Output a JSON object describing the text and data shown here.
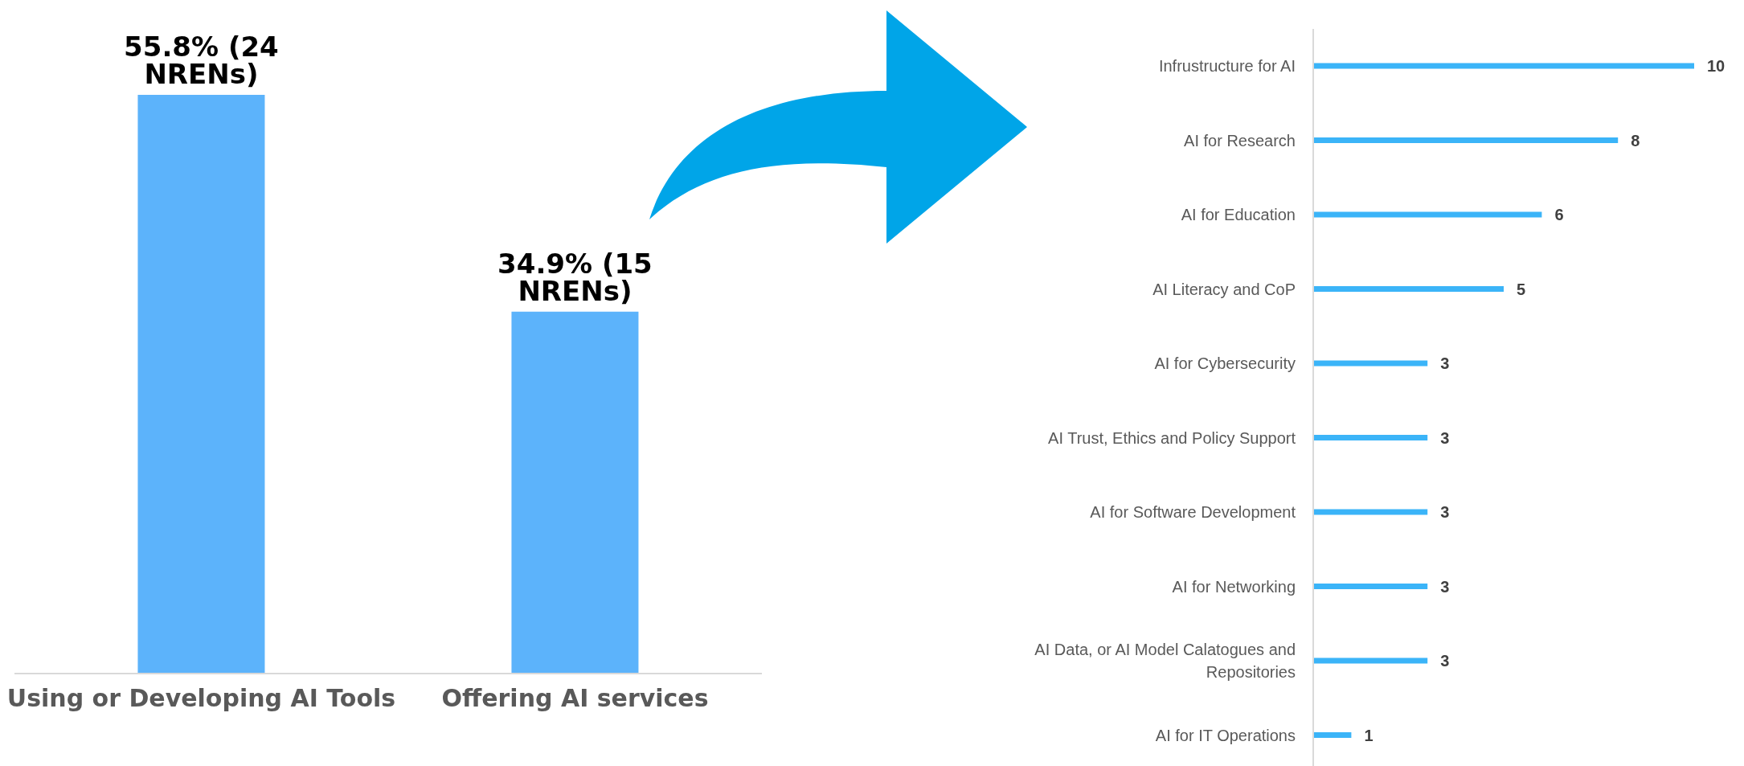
{
  "chart_data": [
    {
      "type": "bar",
      "categories": [
        "Using or Developing AI Tools",
        "Offering AI services"
      ],
      "values": [
        55.8,
        34.9
      ],
      "value_labels": [
        "55.8% (24 NRENs)",
        "34.9% (15 NRENs)"
      ],
      "color": "#5cb3fb",
      "grid": false,
      "legend": false
    },
    {
      "type": "bar",
      "orientation": "horizontal",
      "categories": [
        "Infrustructure for AI",
        "AI for Research",
        "AI for Education",
        "AI Literacy and CoP",
        "AI for Cybersecurity",
        "AI Trust, Ethics and Policy Support",
        "AI for Software Development",
        "AI for Networking",
        "AI Data, or AI Model Calatogues and Repositories",
        "AI for IT Operations"
      ],
      "values": [
        10,
        8,
        6,
        5,
        3,
        3,
        3,
        3,
        3,
        1
      ],
      "color": "#3bb4f8",
      "data_labels": true,
      "grid": false,
      "legend": false
    }
  ]
}
